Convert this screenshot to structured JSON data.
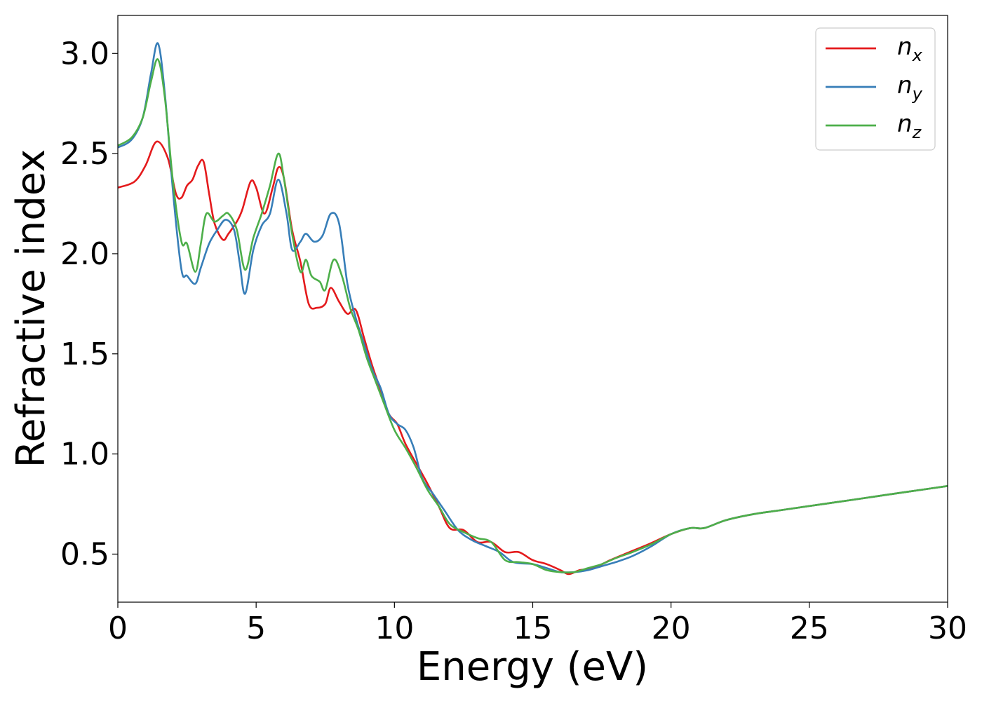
{
  "chart_data": {
    "type": "line",
    "xlabel": "Energy (eV)",
    "ylabel": "Refractive index",
    "xlim": [
      0,
      30
    ],
    "ylim": [
      0.26,
      3.19
    ],
    "x_ticks": [
      "0",
      "5",
      "10",
      "15",
      "20",
      "25",
      "30"
    ],
    "y_ticks": [
      "0.5",
      "1.0",
      "1.5",
      "2.0",
      "2.5",
      "3.0"
    ],
    "grid": false,
    "legend_position": "top-right",
    "series": [
      {
        "name": "n",
        "subscript": "x",
        "color": "#e41a1c",
        "x": [
          0,
          0.6,
          1.0,
          1.4,
          1.8,
          2.1,
          2.3,
          2.5,
          2.7,
          2.9,
          3.1,
          3.3,
          3.5,
          3.8,
          4.0,
          4.3,
          4.5,
          4.8,
          5.0,
          5.3,
          5.6,
          5.8,
          6.0,
          6.3,
          6.6,
          6.9,
          7.2,
          7.5,
          7.7,
          8.0,
          8.3,
          8.6,
          8.9,
          9.2,
          9.5,
          9.8,
          10.1,
          10.4,
          10.8,
          11.2,
          11.6,
          12.0,
          12.5,
          13.0,
          13.5,
          14.0,
          14.5,
          15.0,
          15.5,
          16.0,
          16.3,
          16.7,
          17.2,
          17.8,
          18.5,
          19.2,
          20.0,
          20.7,
          21.2,
          22.0,
          23.0,
          24.0,
          25.0,
          26.0,
          27.0,
          28.0,
          29.0,
          30.0
        ],
        "values": [
          2.33,
          2.36,
          2.44,
          2.56,
          2.48,
          2.3,
          2.28,
          2.34,
          2.37,
          2.44,
          2.46,
          2.3,
          2.15,
          2.07,
          2.1,
          2.16,
          2.22,
          2.36,
          2.33,
          2.2,
          2.33,
          2.43,
          2.38,
          2.12,
          1.96,
          1.75,
          1.73,
          1.75,
          1.83,
          1.76,
          1.7,
          1.72,
          1.58,
          1.44,
          1.32,
          1.2,
          1.15,
          1.05,
          0.95,
          0.85,
          0.74,
          0.63,
          0.62,
          0.56,
          0.56,
          0.51,
          0.51,
          0.47,
          0.45,
          0.42,
          0.4,
          0.42,
          0.43,
          0.47,
          0.51,
          0.55,
          0.6,
          0.63,
          0.63,
          0.67,
          0.7,
          0.72,
          0.74,
          0.76,
          0.78,
          0.8,
          0.82,
          0.84
        ]
      },
      {
        "name": "n",
        "subscript": "y",
        "color": "#377eb8",
        "x": [
          0,
          0.5,
          0.9,
          1.2,
          1.45,
          1.7,
          2.0,
          2.3,
          2.5,
          2.8,
          3.0,
          3.3,
          3.6,
          3.9,
          4.2,
          4.4,
          4.6,
          4.9,
          5.2,
          5.5,
          5.8,
          6.1,
          6.3,
          6.6,
          6.8,
          7.1,
          7.4,
          7.7,
          8.0,
          8.3,
          8.6,
          8.9,
          9.2,
          9.5,
          9.8,
          10.1,
          10.4,
          10.7,
          11.0,
          11.4,
          11.8,
          12.3,
          12.8,
          13.3,
          13.8,
          14.3,
          15.0,
          15.5,
          16.0,
          16.5,
          17.0,
          17.5,
          18.0,
          18.6,
          19.3,
          20.0,
          20.7,
          21.2,
          22.0,
          23.0,
          24.0,
          25.0,
          26.0,
          27.0,
          28.0,
          29.0,
          30.0
        ],
        "values": [
          2.53,
          2.57,
          2.68,
          2.9,
          3.05,
          2.8,
          2.3,
          1.92,
          1.89,
          1.85,
          1.93,
          2.05,
          2.12,
          2.17,
          2.12,
          1.96,
          1.8,
          2.02,
          2.14,
          2.2,
          2.37,
          2.2,
          2.02,
          2.06,
          2.1,
          2.06,
          2.09,
          2.2,
          2.15,
          1.85,
          1.68,
          1.55,
          1.42,
          1.33,
          1.2,
          1.15,
          1.12,
          1.03,
          0.88,
          0.8,
          0.72,
          0.62,
          0.57,
          0.54,
          0.51,
          0.46,
          0.45,
          0.43,
          0.41,
          0.41,
          0.42,
          0.44,
          0.46,
          0.49,
          0.54,
          0.6,
          0.63,
          0.63,
          0.67,
          0.7,
          0.72,
          0.74,
          0.76,
          0.78,
          0.8,
          0.82,
          0.84
        ]
      },
      {
        "name": "n",
        "subscript": "z",
        "color": "#4daf4a",
        "x": [
          0,
          0.5,
          0.9,
          1.2,
          1.45,
          1.7,
          2.0,
          2.3,
          2.5,
          2.8,
          3.0,
          3.2,
          3.5,
          3.8,
          4.0,
          4.3,
          4.6,
          4.9,
          5.2,
          5.5,
          5.8,
          6.0,
          6.3,
          6.6,
          6.8,
          7.0,
          7.3,
          7.5,
          7.8,
          8.1,
          8.4,
          8.7,
          9.0,
          9.3,
          9.6,
          10.0,
          10.4,
          10.8,
          11.2,
          11.6,
          12.0,
          12.5,
          13.0,
          13.5,
          14.0,
          14.5,
          15.0,
          15.5,
          16.0,
          16.5,
          17.0,
          17.5,
          18.0,
          18.6,
          19.3,
          20.0,
          20.7,
          21.2,
          22.0,
          23.0,
          24.0,
          25.0,
          26.0,
          27.0,
          28.0,
          29.0,
          30.0
        ],
        "values": [
          2.54,
          2.58,
          2.68,
          2.86,
          2.97,
          2.78,
          2.35,
          2.06,
          2.05,
          1.91,
          2.05,
          2.2,
          2.16,
          2.19,
          2.2,
          2.12,
          1.92,
          2.08,
          2.2,
          2.34,
          2.5,
          2.38,
          2.1,
          1.91,
          1.97,
          1.89,
          1.86,
          1.82,
          1.97,
          1.89,
          1.73,
          1.62,
          1.48,
          1.37,
          1.26,
          1.12,
          1.03,
          0.93,
          0.82,
          0.74,
          0.65,
          0.61,
          0.58,
          0.56,
          0.47,
          0.46,
          0.45,
          0.42,
          0.41,
          0.41,
          0.43,
          0.45,
          0.48,
          0.51,
          0.55,
          0.6,
          0.63,
          0.63,
          0.67,
          0.7,
          0.72,
          0.74,
          0.76,
          0.78,
          0.8,
          0.82,
          0.84
        ]
      }
    ]
  }
}
